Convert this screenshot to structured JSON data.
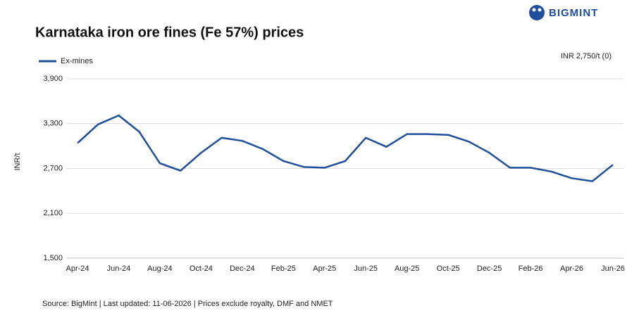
{
  "logo": "BIGMINT",
  "chart_data": {
    "type": "line",
    "title": "Karnataka iron ore fines (Fe 57%) prices",
    "ylabel": "INR/t",
    "annotation": "INR 2,750/t (0)",
    "source": "Source: BigMint | Last updated: 11-06-2026 | Prices exclude royalty, DMF and NMET",
    "categories": [
      "Apr-24",
      null,
      "Jun-24",
      null,
      "Aug-24",
      null,
      "Oct-24",
      null,
      "Dec-24",
      null,
      "Feb-25",
      null,
      "Apr-25",
      null,
      "Jun-25",
      null,
      "Aug-25",
      null,
      "Oct-25",
      null,
      "Dec-25",
      null,
      "Feb-26",
      null,
      "Apr-26",
      null,
      "Jun-26"
    ],
    "series": [
      {
        "name": "Ex-mines",
        "color": "#1f4e9c",
        "values": [
          3040,
          3290,
          3410,
          3190,
          2770,
          2670,
          2910,
          3110,
          3070,
          2960,
          2800,
          2720,
          2710,
          2800,
          3110,
          2990,
          3160,
          3160,
          3150,
          3060,
          2910,
          2710,
          2710,
          2660,
          2570,
          2530,
          2750
        ]
      }
    ],
    "ylim": [
      1500,
      3900
    ],
    "yticks": [
      {
        "value": 1500,
        "label": "1,500"
      },
      {
        "value": 2100,
        "label": "2,100"
      },
      {
        "value": 2700,
        "label": "2,700"
      },
      {
        "value": 3300,
        "label": "3,300"
      },
      {
        "value": 3900,
        "label": "3,900"
      }
    ],
    "grid": true
  }
}
